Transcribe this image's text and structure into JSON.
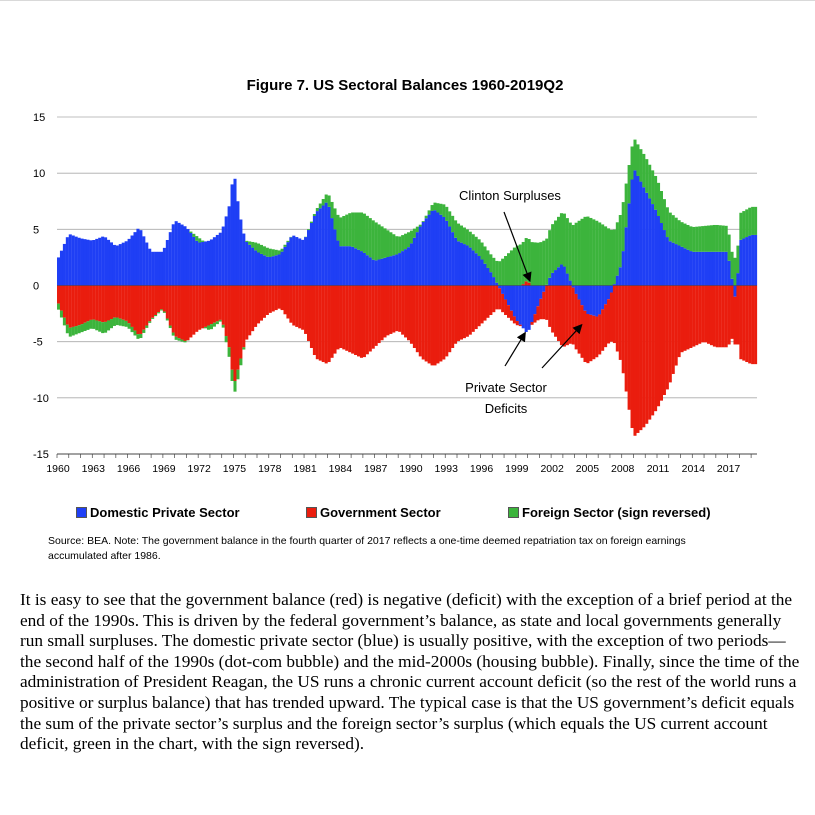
{
  "chart_data": {
    "type": "bar",
    "title": "Figure 7. US Sectoral Balances 1960-2019Q2",
    "stacked": true,
    "ylim": [
      -15,
      15
    ],
    "yticks": [
      15,
      10,
      5,
      0,
      -5,
      -10,
      -15
    ],
    "xlim": [
      1960,
      2019.5
    ],
    "xticks": [
      "1960",
      "1963",
      "1966",
      "1969",
      "1972",
      "1975",
      "1978",
      "1981",
      "1984",
      "1987",
      "1990",
      "1993",
      "1996",
      "1999",
      "2002",
      "2005",
      "2008",
      "2011",
      "2014",
      "2017"
    ],
    "grid": true,
    "legend_position": "bottom",
    "colors": {
      "private": "#1f3ff5",
      "government": "#ea1d0e",
      "foreign": "#3cb43c",
      "gridline": "#aaaaaa",
      "axis": "#444444"
    },
    "series": [
      {
        "name": "Domestic Private Sector",
        "key": "private",
        "color": "#1f3ff5",
        "values": [
          [
            1960,
            2.2
          ],
          [
            1961,
            4.6
          ],
          [
            1962,
            4.2
          ],
          [
            1963,
            4.0
          ],
          [
            1964,
            4.4
          ],
          [
            1965,
            3.5
          ],
          [
            1966,
            4.0
          ],
          [
            1967,
            5.2
          ],
          [
            1968,
            3.0
          ],
          [
            1969,
            3.0
          ],
          [
            1970,
            5.8
          ],
          [
            1971,
            5.2
          ],
          [
            1972,
            3.8
          ],
          [
            1973,
            4.0
          ],
          [
            1974,
            4.8
          ],
          [
            1974.75,
            7.5
          ],
          [
            1975,
            10.5
          ],
          [
            1975.5,
            6.5
          ],
          [
            1976,
            4.0
          ],
          [
            1977,
            3.0
          ],
          [
            1978,
            2.5
          ],
          [
            1979,
            2.8
          ],
          [
            1980,
            4.5
          ],
          [
            1981,
            4.0
          ],
          [
            1982,
            6.5
          ],
          [
            1983,
            7.5
          ],
          [
            1984,
            3.5
          ],
          [
            1985,
            3.5
          ],
          [
            1986,
            3.0
          ],
          [
            1987,
            2.2
          ],
          [
            1988,
            2.5
          ],
          [
            1989,
            2.8
          ],
          [
            1990,
            3.5
          ],
          [
            1991,
            5.5
          ],
          [
            1992,
            6.8
          ],
          [
            1993,
            6.0
          ],
          [
            1994,
            4.0
          ],
          [
            1995,
            3.5
          ],
          [
            1996,
            2.5
          ],
          [
            1997,
            1.0
          ],
          [
            1998,
            -1.0
          ],
          [
            1999,
            -3.0
          ],
          [
            2000,
            -4.3
          ],
          [
            2001,
            -1.5
          ],
          [
            2002,
            1.0
          ],
          [
            2003,
            2.0
          ],
          [
            2004,
            -0.5
          ],
          [
            2005,
            -2.5
          ],
          [
            2006,
            -2.8
          ],
          [
            2007,
            -1.0
          ],
          [
            2008,
            2.0
          ],
          [
            2009,
            10.5
          ],
          [
            2010,
            8.5
          ],
          [
            2011,
            6.5
          ],
          [
            2012,
            4.0
          ],
          [
            2013,
            3.5
          ],
          [
            2014,
            3.0
          ],
          [
            2015,
            3.0
          ],
          [
            2016,
            3.0
          ],
          [
            2017,
            3.0
          ],
          [
            2017.75,
            -1.8
          ],
          [
            2018,
            4.0
          ],
          [
            2019,
            4.5
          ]
        ]
      },
      {
        "name": "Government Sector",
        "key": "government",
        "color": "#ea1d0e",
        "values": [
          [
            1960,
            -1.3
          ],
          [
            1961,
            -3.8
          ],
          [
            1962,
            -3.5
          ],
          [
            1963,
            -3.0
          ],
          [
            1964,
            -3.3
          ],
          [
            1965,
            -2.8
          ],
          [
            1966,
            -3.2
          ],
          [
            1967,
            -4.5
          ],
          [
            1968,
            -3.0
          ],
          [
            1969,
            -2.0
          ],
          [
            1970,
            -4.5
          ],
          [
            1971,
            -5.0
          ],
          [
            1972,
            -4.0
          ],
          [
            1973,
            -3.5
          ],
          [
            1974,
            -3.0
          ],
          [
            1974.75,
            -6.0
          ],
          [
            1975,
            -9.0
          ],
          [
            1975.5,
            -7.0
          ],
          [
            1976,
            -5.0
          ],
          [
            1977,
            -3.5
          ],
          [
            1978,
            -2.5
          ],
          [
            1979,
            -2.0
          ],
          [
            1980,
            -3.5
          ],
          [
            1981,
            -4.0
          ],
          [
            1982,
            -6.5
          ],
          [
            1983,
            -7.0
          ],
          [
            1984,
            -5.5
          ],
          [
            1985,
            -6.0
          ],
          [
            1986,
            -6.5
          ],
          [
            1987,
            -5.5
          ],
          [
            1988,
            -4.5
          ],
          [
            1989,
            -4.0
          ],
          [
            1990,
            -5.0
          ],
          [
            1991,
            -6.5
          ],
          [
            1992,
            -7.2
          ],
          [
            1993,
            -6.5
          ],
          [
            1994,
            -5.0
          ],
          [
            1995,
            -4.5
          ],
          [
            1996,
            -3.5
          ],
          [
            1997,
            -2.5
          ],
          [
            1998,
            -1.5
          ],
          [
            1999,
            -0.5
          ],
          [
            2000,
            0.5
          ],
          [
            2001,
            -1.5
          ],
          [
            2002,
            -4.0
          ],
          [
            2003,
            -5.5
          ],
          [
            2004,
            -5.0
          ],
          [
            2005,
            -4.5
          ],
          [
            2006,
            -3.5
          ],
          [
            2007,
            -4.0
          ],
          [
            2008,
            -7.0
          ],
          [
            2009,
            -13.5
          ],
          [
            2010,
            -12.5
          ],
          [
            2011,
            -11.0
          ],
          [
            2012,
            -9.0
          ],
          [
            2013,
            -6.0
          ],
          [
            2014,
            -5.5
          ],
          [
            2015,
            -5.0
          ],
          [
            2016,
            -5.5
          ],
          [
            2017,
            -5.5
          ],
          [
            2017.75,
            -4.0
          ],
          [
            2018,
            -6.5
          ],
          [
            2019,
            -7.0
          ]
        ]
      },
      {
        "name": "Foreign Sector (sign reversed)",
        "key": "foreign",
        "color": "#3cb43c",
        "values": [
          [
            1960,
            -0.5
          ],
          [
            1961,
            -0.8
          ],
          [
            1962,
            -0.7
          ],
          [
            1963,
            -0.8
          ],
          [
            1964,
            -1.0
          ],
          [
            1965,
            -0.7
          ],
          [
            1966,
            -0.5
          ],
          [
            1967,
            -0.4
          ],
          [
            1968,
            -0.1
          ],
          [
            1969,
            -0.1
          ],
          [
            1970,
            -0.3
          ],
          [
            1971,
            -0.1
          ],
          [
            1972,
            0.5
          ],
          [
            1973,
            -0.5
          ],
          [
            1974,
            -0.1
          ],
          [
            1974.75,
            -1.0
          ],
          [
            1975,
            -1.0
          ],
          [
            1975.5,
            -0.8
          ],
          [
            1976,
            0.0
          ],
          [
            1977,
            0.8
          ],
          [
            1978,
            0.8
          ],
          [
            1979,
            0.3
          ],
          [
            1980,
            0.0
          ],
          [
            1981,
            0.0
          ],
          [
            1982,
            0.2
          ],
          [
            1983,
            0.8
          ],
          [
            1984,
            2.5
          ],
          [
            1985,
            3.0
          ],
          [
            1986,
            3.5
          ],
          [
            1987,
            3.5
          ],
          [
            1988,
            2.5
          ],
          [
            1989,
            1.5
          ],
          [
            1990,
            1.3
          ],
          [
            1991,
            0.0
          ],
          [
            1992,
            0.6
          ],
          [
            1993,
            1.2
          ],
          [
            1994,
            1.6
          ],
          [
            1995,
            1.4
          ],
          [
            1996,
            1.5
          ],
          [
            1997,
            1.6
          ],
          [
            1998,
            2.5
          ],
          [
            1999,
            3.5
          ],
          [
            2000,
            3.9
          ],
          [
            2001,
            3.8
          ],
          [
            2002,
            4.3
          ],
          [
            2003,
            4.6
          ],
          [
            2004,
            5.5
          ],
          [
            2005,
            6.2
          ],
          [
            2006,
            5.7
          ],
          [
            2007,
            5.0
          ],
          [
            2008,
            4.6
          ],
          [
            2009,
            2.7
          ],
          [
            2010,
            3.0
          ],
          [
            2011,
            3.0
          ],
          [
            2012,
            2.6
          ],
          [
            2013,
            2.2
          ],
          [
            2014,
            2.2
          ],
          [
            2015,
            2.3
          ],
          [
            2016,
            2.4
          ],
          [
            2017,
            2.3
          ],
          [
            2017.75,
            2.5
          ],
          [
            2018,
            2.4
          ],
          [
            2019,
            2.5
          ]
        ]
      }
    ],
    "annotations": [
      {
        "key": "clinton",
        "text": "Clinton Surpluses",
        "points_to": [
          2000.2,
          0.4
        ]
      },
      {
        "key": "private-deficits",
        "lines": [
          "Private Sector",
          "Deficits"
        ],
        "points_to": [
          [
            1999.8,
            -4.2
          ],
          [
            2004.6,
            -3.5
          ]
        ]
      }
    ]
  },
  "legend": {
    "items": [
      {
        "label": "Domestic Private Sector",
        "color": "#1f3ff5"
      },
      {
        "label": "Government Sector",
        "color": "#ea1d0e"
      },
      {
        "label": "Foreign Sector (sign reversed)",
        "color": "#3cb43c"
      }
    ]
  },
  "source_note": "Source: BEA. Note: The government balance in the fourth quarter of 2017 reflects a one-time deemed repatriation tax on foreign earnings accumulated after 1986.",
  "body_text": "It is easy to see that the government balance (red) is negative (deficit) with the exception of a brief period at the end of the 1990s. This is driven by the federal government’s balance, as state and local governments generally run small surpluses. The domestic private sector (blue) is usually positive, with the exception of two periods—the second half of the 1990s (dot-com bubble) and the mid-2000s (housing bubble). Finally, since the time of the administration of President Reagan, the US runs a chronic current account deficit (so the rest of the world runs a positive or surplus balance) that has trended upward. The typical case is that the US government’s deficit equals the sum of the private sector’s surplus and the foreign sector’s surplus (which equals the US current account deficit, green in the chart, with the sign reversed)."
}
